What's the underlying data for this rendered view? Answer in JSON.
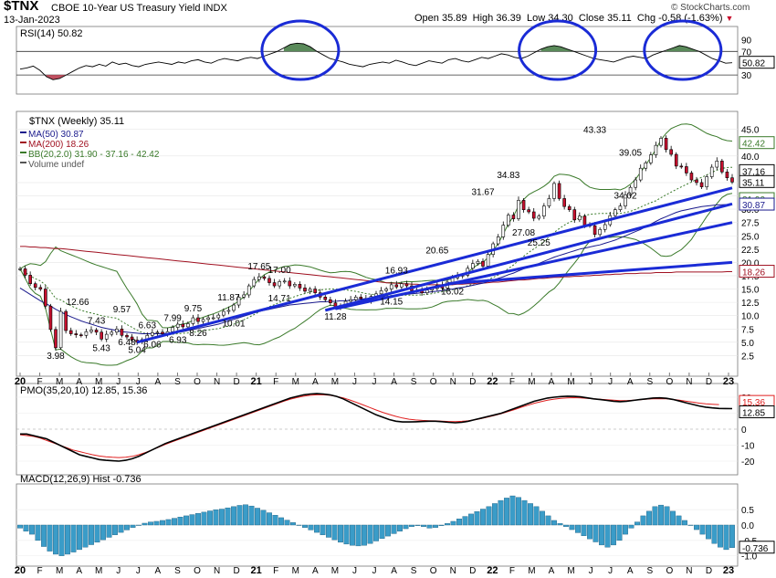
{
  "header": {
    "ticker": "$TNX",
    "name": "CBOE 10-Year US Treasury Yield INDX",
    "date": "13-Jan-2023",
    "open_label": "Open",
    "open": "35.89",
    "high_label": "High",
    "high": "36.39",
    "low_label": "Low",
    "low": "34.30",
    "close_label": "Close",
    "close": "35.11",
    "chg_label": "Chg",
    "chg": "-0.58 (-1.63%)",
    "chg_arrow": "▼",
    "brand": "© StockCharts.com"
  },
  "colors": {
    "up_candle": "#ffffff",
    "down_candle": "#c8102e",
    "ma50": "#1a1a8c",
    "ma200": "#a01020",
    "bb": "#3a7a2a",
    "trendline": "#1a2bd6",
    "circle": "#1a2bd6",
    "pmo": "#000000",
    "pmo_signal": "#e02020",
    "macd_hist": "#3a9cc8",
    "rsi_fill": "#5a8a5a"
  },
  "chart_data": [
    {
      "type": "line",
      "panel": "rsi",
      "legend": "RSI(14) 50.82",
      "ylim": [
        10,
        100
      ],
      "y_ticks": [
        "90",
        "70",
        "50",
        "30"
      ],
      "last_value_label": "50.82",
      "reference_lines": [
        70,
        30
      ],
      "values": [
        40,
        42,
        45,
        38,
        27,
        22,
        24,
        30,
        36,
        42,
        46,
        44,
        48,
        45,
        52,
        48,
        50,
        46,
        44,
        48,
        50,
        52,
        50,
        48,
        52,
        50,
        54,
        56,
        52,
        50,
        55,
        58,
        56,
        54,
        58,
        60,
        58,
        62,
        66,
        70,
        76,
        82,
        84,
        83,
        78,
        70,
        64,
        58,
        55,
        52,
        48,
        46,
        44,
        48,
        50,
        52,
        50,
        55,
        52,
        48,
        46,
        50,
        54,
        52,
        50,
        56,
        58,
        54,
        52,
        56,
        60,
        58,
        62,
        66,
        64,
        60,
        58,
        62,
        68,
        74,
        78,
        80,
        78,
        74,
        70,
        66,
        62,
        58,
        56,
        54,
        52,
        56,
        60,
        62,
        60,
        58,
        64,
        68,
        72,
        76,
        80,
        78,
        74,
        70,
        64,
        58,
        54,
        50,
        50.82
      ],
      "highlight_circles_count": 3
    },
    {
      "type": "line",
      "panel": "price",
      "legend_title": "$TNX (Weekly) 35.11",
      "series_names": [
        "MA(50) 30.87",
        "MA(200) 18.26",
        "BB(20,2.0) 31.90 - 37.16 - 42.42",
        "Volume undef"
      ],
      "ylim": [
        0,
        47
      ],
      "y_ticks": [
        "45.0",
        "40.0",
        "35.0",
        "32.5",
        "30.0",
        "27.5",
        "25.0",
        "22.5",
        "20.0",
        "17.5",
        "15.0",
        "12.5",
        "10.0",
        "7.5",
        "5.0",
        "2.5"
      ],
      "right_value_labels": [
        "42.42",
        "37.16",
        "35.11",
        "31.90",
        "30.87",
        "18.26"
      ],
      "x_ticks": [
        "20",
        "F",
        "M",
        "A",
        "M",
        "J",
        "J",
        "A",
        "S",
        "O",
        "N",
        "D",
        "21",
        "F",
        "M",
        "A",
        "M",
        "J",
        "J",
        "A",
        "S",
        "O",
        "N",
        "D",
        "22",
        "F",
        "M",
        "A",
        "M",
        "J",
        "J",
        "A",
        "S",
        "O",
        "N",
        "D",
        "23"
      ],
      "close": [
        18.8,
        17.6,
        16.0,
        15.3,
        15.0,
        11.8,
        7.4,
        3.98,
        10.8,
        7.2,
        6.6,
        6.4,
        6.3,
        7.0,
        7.3,
        6.9,
        5.6,
        6.5,
        6.9,
        7.5,
        6.3,
        6.0,
        5.4,
        5.04,
        5.5,
        6.3,
        6.8,
        6.9,
        6.6,
        7.0,
        7.8,
        8.4,
        7.9,
        8.5,
        9.6,
        8.9,
        9.3,
        9.6,
        9.6,
        10.1,
        10.8,
        11.0,
        12.0,
        13.5,
        13.9,
        15.6,
        16.8,
        17.3,
        17.0,
        16.2,
        15.6,
        16.4,
        16.5,
        15.6,
        15.9,
        15.2,
        14.6,
        15.0,
        14.3,
        13.5,
        13.0,
        12.4,
        11.6,
        11.9,
        12.7,
        13.0,
        13.5,
        13.2,
        12.8,
        13.6,
        14.1,
        14.7,
        15.0,
        15.8,
        15.4,
        16.0,
        15.6,
        14.7,
        14.8,
        14.3,
        14.8,
        15.1,
        15.7,
        15.2,
        16.3,
        17.1,
        17.5,
        17.6,
        18.9,
        19.8,
        20.2,
        19.3,
        21.5,
        23.5,
        24.8,
        27.0,
        28.9,
        28.2,
        31.67,
        29.9,
        29.5,
        28.3,
        28.7,
        30.6,
        32.0,
        34.83,
        32.0,
        30.5,
        29.9,
        28.0,
        28.7,
        27.0,
        26.9,
        25.25,
        26.2,
        27.1,
        28.8,
        29.9,
        30.6,
        32.7,
        34.1,
        35.5,
        37.7,
        38.7,
        40.2,
        42.0,
        43.33,
        41.2,
        40.3,
        38.1,
        38.0,
        36.8,
        35.5,
        35.0,
        34.2,
        36.1,
        37.9,
        39.05,
        37.0,
        35.9,
        35.11
      ],
      "ma50": [
        15.2,
        14.6,
        14.0,
        13.4,
        12.8,
        12.3,
        11.8,
        11.2,
        10.7,
        10.2,
        9.8,
        9.4,
        9.0,
        8.7,
        8.4,
        8.1,
        7.8,
        7.6,
        7.4,
        7.2,
        7.0,
        6.9,
        6.8,
        6.7,
        6.6,
        6.6,
        6.6,
        6.6,
        6.6,
        6.7,
        6.8,
        6.9,
        7.0,
        7.2,
        7.4,
        7.6,
        7.8,
        8.0,
        8.2,
        8.4,
        8.7,
        9.0,
        9.3,
        9.6,
        9.9,
        10.2,
        10.5,
        10.8,
        11.0,
        11.2,
        11.4,
        11.6,
        11.8,
        12.0,
        12.1,
        12.2,
        12.3,
        12.4,
        12.5,
        12.6,
        12.6,
        12.7,
        12.7,
        12.8,
        12.8,
        12.9,
        13.0,
        13.1,
        13.2,
        13.3,
        13.4,
        13.5,
        13.6,
        13.7,
        13.8,
        13.9,
        14.0,
        14.1,
        14.2,
        14.3,
        14.4,
        14.5,
        14.6,
        14.7,
        14.9,
        15.0,
        15.2,
        15.3,
        15.5,
        15.7,
        15.9,
        16.1,
        16.4,
        16.7,
        17.0,
        17.3,
        17.7,
        18.0,
        18.4,
        18.8,
        19.1,
        19.5,
        19.8,
        20.2,
        20.6,
        21.0,
        21.3,
        21.6,
        21.9,
        22.2,
        22.5,
        22.7,
        22.9,
        23.1,
        23.3,
        23.6,
        23.9,
        24.2,
        24.6,
        25.0,
        25.4,
        25.8,
        26.2,
        26.7,
        27.2,
        27.7,
        28.2,
        28.6,
        29.0,
        29.4,
        29.7,
        29.9,
        30.1,
        30.3,
        30.5,
        30.6,
        30.7,
        30.8,
        30.85,
        30.87,
        30.87
      ],
      "ma200": [
        23.0,
        23.0,
        22.9,
        22.9,
        22.8,
        22.8,
        22.7,
        22.6,
        22.6,
        22.5,
        22.4,
        22.3,
        22.2,
        22.1,
        22.0,
        21.9,
        21.8,
        21.7,
        21.6,
        21.5,
        21.4,
        21.3,
        21.2,
        21.1,
        21.0,
        20.9,
        20.8,
        20.7,
        20.6,
        20.5,
        20.4,
        20.3,
        20.2,
        20.1,
        20.0,
        19.9,
        19.8,
        19.7,
        19.6,
        19.5,
        19.4,
        19.3,
        19.2,
        19.1,
        19.0,
        18.9,
        18.8,
        18.7,
        18.6,
        18.5,
        18.4,
        18.3,
        18.2,
        18.1,
        18.0,
        17.9,
        17.8,
        17.7,
        17.6,
        17.5,
        17.4,
        17.3,
        17.2,
        17.1,
        17.0,
        16.9,
        16.8,
        16.7,
        16.6,
        16.5,
        16.4,
        16.3,
        16.2,
        16.1,
        16.1,
        16.0,
        16.0,
        15.9,
        15.9,
        15.8,
        15.8,
        15.8,
        15.8,
        15.8,
        15.8,
        15.8,
        15.9,
        15.9,
        16.0,
        16.0,
        16.1,
        16.1,
        16.2,
        16.3,
        16.3,
        16.4,
        16.5,
        16.6,
        16.7,
        16.7,
        16.8,
        16.9,
        17.0,
        17.0,
        17.1,
        17.2,
        17.2,
        17.3,
        17.3,
        17.4,
        17.4,
        17.5,
        17.5,
        17.6,
        17.6,
        17.7,
        17.7,
        17.8,
        17.8,
        17.9,
        17.9,
        17.9,
        18.0,
        18.0,
        18.0,
        18.1,
        18.1,
        18.1,
        18.1,
        18.2,
        18.2,
        18.2,
        18.2,
        18.2,
        18.2,
        18.2,
        18.2,
        18.2,
        18.2,
        18.26,
        18.26
      ],
      "trendlines_count": 4,
      "price_annotations": [
        {
          "text": "12.66",
          "x": 8,
          "y": 12.66,
          "side": "right"
        },
        {
          "text": "3.98",
          "x": 7,
          "y": 3.98,
          "side": "below"
        },
        {
          "text": "7.43",
          "x": 15,
          "y": 7.43,
          "side": "above"
        },
        {
          "text": "5.43",
          "x": 16,
          "y": 5.43,
          "side": "below"
        },
        {
          "text": "9.57",
          "x": 20,
          "y": 9.57,
          "side": "above"
        },
        {
          "text": "6.48",
          "x": 21,
          "y": 6.48,
          "side": "below"
        },
        {
          "text": "6.63",
          "x": 25,
          "y": 6.63,
          "side": "above"
        },
        {
          "text": "5.04",
          "x": 23,
          "y": 5.04,
          "side": "below"
        },
        {
          "text": "6.06",
          "x": 26,
          "y": 6.06,
          "side": "below"
        },
        {
          "text": "7.99",
          "x": 30,
          "y": 7.99,
          "side": "above"
        },
        {
          "text": "6.93",
          "x": 31,
          "y": 6.93,
          "side": "below"
        },
        {
          "text": "9.75",
          "x": 34,
          "y": 9.75,
          "side": "above"
        },
        {
          "text": "8.26",
          "x": 35,
          "y": 8.26,
          "side": "below"
        },
        {
          "text": "11.87",
          "x": 41,
          "y": 11.87,
          "side": "above"
        },
        {
          "text": "10.01",
          "x": 42,
          "y": 10.01,
          "side": "below"
        },
        {
          "text": "17.65",
          "x": 47,
          "y": 17.65,
          "side": "above"
        },
        {
          "text": "17.00",
          "x": 51,
          "y": 17.0,
          "side": "above"
        },
        {
          "text": "14.71",
          "x": 51,
          "y": 14.71,
          "side": "below"
        },
        {
          "text": "11.28",
          "x": 62,
          "y": 11.28,
          "side": "below"
        },
        {
          "text": "16.93",
          "x": 74,
          "y": 16.93,
          "side": "above"
        },
        {
          "text": "14.15",
          "x": 73,
          "y": 14.15,
          "side": "below"
        },
        {
          "text": "20.65",
          "x": 82,
          "y": 20.65,
          "side": "above"
        },
        {
          "text": "16.02",
          "x": 85,
          "y": 16.02,
          "side": "below"
        },
        {
          "text": "31.67",
          "x": 91,
          "y": 31.67,
          "side": "above"
        },
        {
          "text": "34.83",
          "x": 96,
          "y": 34.83,
          "side": "above"
        },
        {
          "text": "27.08",
          "x": 99,
          "y": 27.08,
          "side": "below"
        },
        {
          "text": "25.25",
          "x": 102,
          "y": 25.25,
          "side": "below"
        },
        {
          "text": "43.33",
          "x": 113,
          "y": 43.33,
          "side": "above"
        },
        {
          "text": "34.02",
          "x": 119,
          "y": 34.02,
          "side": "below"
        },
        {
          "text": "39.05",
          "x": 120,
          "y": 39.05,
          "side": "above"
        }
      ]
    },
    {
      "type": "line",
      "panel": "pmo",
      "legend": "PMO(35,20,10) 12.85, 15.36",
      "ylim": [
        -24,
        24
      ],
      "y_ticks": [
        "20",
        "10",
        "0",
        "-10",
        "-20"
      ],
      "right_value_labels": [
        "15.36",
        "12.85"
      ],
      "pmo": [
        -3,
        -3,
        -4,
        -5,
        -6,
        -8,
        -10,
        -12,
        -14,
        -16,
        -17,
        -18,
        -19,
        -19.5,
        -19.8,
        -20,
        -19.5,
        -18.5,
        -17,
        -15,
        -13,
        -11,
        -9,
        -7.5,
        -6,
        -4.5,
        -3,
        -1.5,
        0,
        1.5,
        3,
        4.5,
        6,
        7.5,
        9,
        10.5,
        12,
        13.5,
        15,
        16.5,
        18,
        19.5,
        20.5,
        21.5,
        22,
        22.2,
        22,
        21.5,
        20.5,
        19,
        17,
        15,
        13,
        11,
        9,
        7.5,
        6,
        5,
        4.5,
        4.5,
        4.6,
        4.8,
        5,
        5,
        4.7,
        4.3,
        4,
        4.3,
        5,
        6,
        7,
        8,
        9,
        10,
        11.5,
        13,
        14.5,
        16,
        17.5,
        18.5,
        19.5,
        20,
        20.4,
        20.6,
        20.5,
        20.2,
        19.6,
        19,
        18.5,
        18,
        17.5,
        17.2,
        17.5,
        18,
        18.5,
        19,
        19.5,
        19.6,
        19.3,
        18.6,
        17.6,
        16.5,
        15.5,
        14.5,
        13.8,
        13.3,
        13,
        12.9,
        12.85
      ],
      "signal": [
        -3.5,
        -4,
        -4.5,
        -5.5,
        -7,
        -8.5,
        -10,
        -11.5,
        -13,
        -14,
        -15,
        -16,
        -16.8,
        -17.3,
        -17.6,
        -17.8,
        -17.6,
        -17,
        -16,
        -14.6,
        -13,
        -11.3,
        -9.6,
        -8,
        -6.5,
        -5,
        -3.5,
        -2,
        -0.5,
        1,
        2.5,
        4,
        5.5,
        7,
        8.5,
        10,
        11.5,
        13,
        14.5,
        16,
        17.5,
        18.8,
        19.8,
        20.6,
        21.2,
        21.5,
        21.5,
        21.2,
        20.5,
        19.6,
        18.3,
        16.8,
        15.2,
        13.6,
        12,
        10.5,
        9.2,
        8,
        7,
        6.2,
        5.8,
        5.5,
        5.3,
        5.2,
        5,
        4.8,
        4.7,
        4.9,
        5.3,
        5.9,
        6.7,
        7.6,
        8.6,
        9.7,
        11,
        12.3,
        13.7,
        15,
        16.2,
        17.2,
        18.1,
        18.8,
        19.3,
        19.6,
        19.7,
        19.6,
        19.3,
        19,
        18.7,
        18.4,
        18.1,
        17.9,
        17.9,
        18.1,
        18.4,
        18.8,
        19,
        19.1,
        19,
        18.6,
        18.1,
        17.5,
        16.9,
        16.3,
        15.9,
        15.6,
        15.36
      ]
    },
    {
      "type": "bar",
      "panel": "macd",
      "legend": "MACD(12,26,9) Hist -0.736",
      "ylim": [
        -1.1,
        1.1
      ],
      "y_ticks": [
        "0.5",
        "0.0",
        "-0.5",
        "-1.0"
      ],
      "right_value_labels": [
        "-0.736"
      ],
      "values": [
        -0.1,
        -0.2,
        -0.3,
        -0.5,
        -0.7,
        -0.85,
        -0.95,
        -1.0,
        -0.95,
        -0.88,
        -0.8,
        -0.72,
        -0.64,
        -0.56,
        -0.48,
        -0.4,
        -0.32,
        -0.24,
        -0.16,
        -0.08,
        0.0,
        0.06,
        0.1,
        0.12,
        0.15,
        0.18,
        0.22,
        0.26,
        0.3,
        0.34,
        0.38,
        0.42,
        0.46,
        0.5,
        0.52,
        0.56,
        0.6,
        0.64,
        0.66,
        0.62,
        0.55,
        0.48,
        0.4,
        0.32,
        0.24,
        0.16,
        0.08,
        0.0,
        -0.08,
        -0.16,
        -0.24,
        -0.32,
        -0.4,
        -0.48,
        -0.56,
        -0.62,
        -0.66,
        -0.68,
        -0.66,
        -0.6,
        -0.52,
        -0.44,
        -0.36,
        -0.28,
        -0.2,
        -0.12,
        -0.05,
        -0.02,
        -0.05,
        -0.1,
        -0.08,
        -0.02,
        0.05,
        0.12,
        0.2,
        0.28,
        0.36,
        0.44,
        0.52,
        0.6,
        0.7,
        0.8,
        0.88,
        0.95,
        0.9,
        0.8,
        0.7,
        0.6,
        0.45,
        0.3,
        0.15,
        0.05,
        -0.05,
        -0.15,
        -0.25,
        -0.35,
        -0.45,
        -0.55,
        -0.65,
        -0.72,
        -0.65,
        -0.5,
        -0.3,
        -0.1,
        0.1,
        0.3,
        0.45,
        0.6,
        0.65,
        0.6,
        0.45,
        0.3,
        0.15,
        0.0,
        -0.15,
        -0.3,
        -0.45,
        -0.6,
        -0.72,
        -0.8,
        -0.736
      ]
    }
  ]
}
